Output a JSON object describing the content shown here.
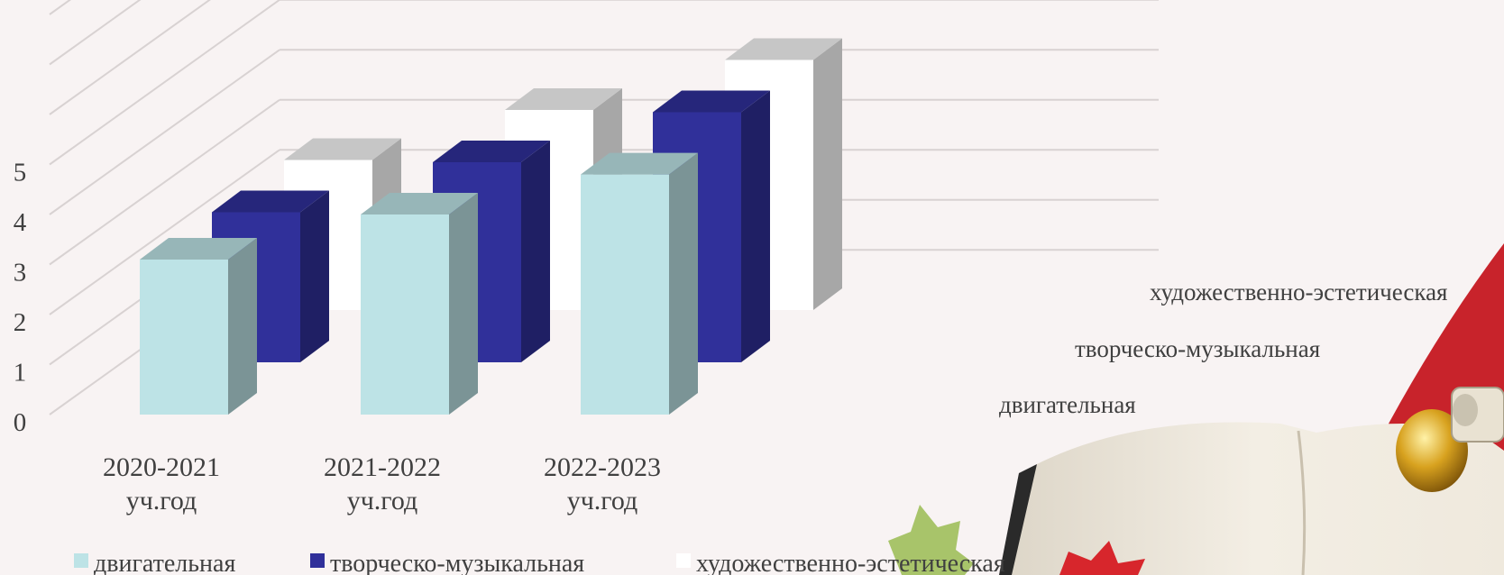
{
  "chart_data": {
    "type": "bar",
    "subtype": "3d-clustered-column",
    "title": "",
    "categories": [
      "2020-2021 уч.год",
      "2021-2022 уч.год",
      "2022-2023 уч.год"
    ],
    "series": [
      {
        "name": "двигательная",
        "values": [
          3.1,
          4.0,
          4.8
        ],
        "color": "#bde3e6"
      },
      {
        "name": "творческо-музыкальная",
        "values": [
          3.0,
          4.0,
          5.0
        ],
        "color": "#30309a"
      },
      {
        "name": "художественно-эстетическая",
        "values": [
          3.0,
          4.0,
          5.0
        ],
        "color": "#ffffff"
      }
    ],
    "yticks": [
      "0",
      "1",
      "2",
      "3",
      "4",
      "5"
    ],
    "ylim": [
      0,
      8
    ],
    "grid": true,
    "legend_position": "bottom",
    "depth_axis_labels": [
      "художественно-эстетическая",
      "творческо-музыкальная",
      "двигательная"
    ]
  },
  "decor": {
    "background_color": "#f8f3f3",
    "decoration": "open book, bell, autumn leaves (bottom-right)"
  }
}
